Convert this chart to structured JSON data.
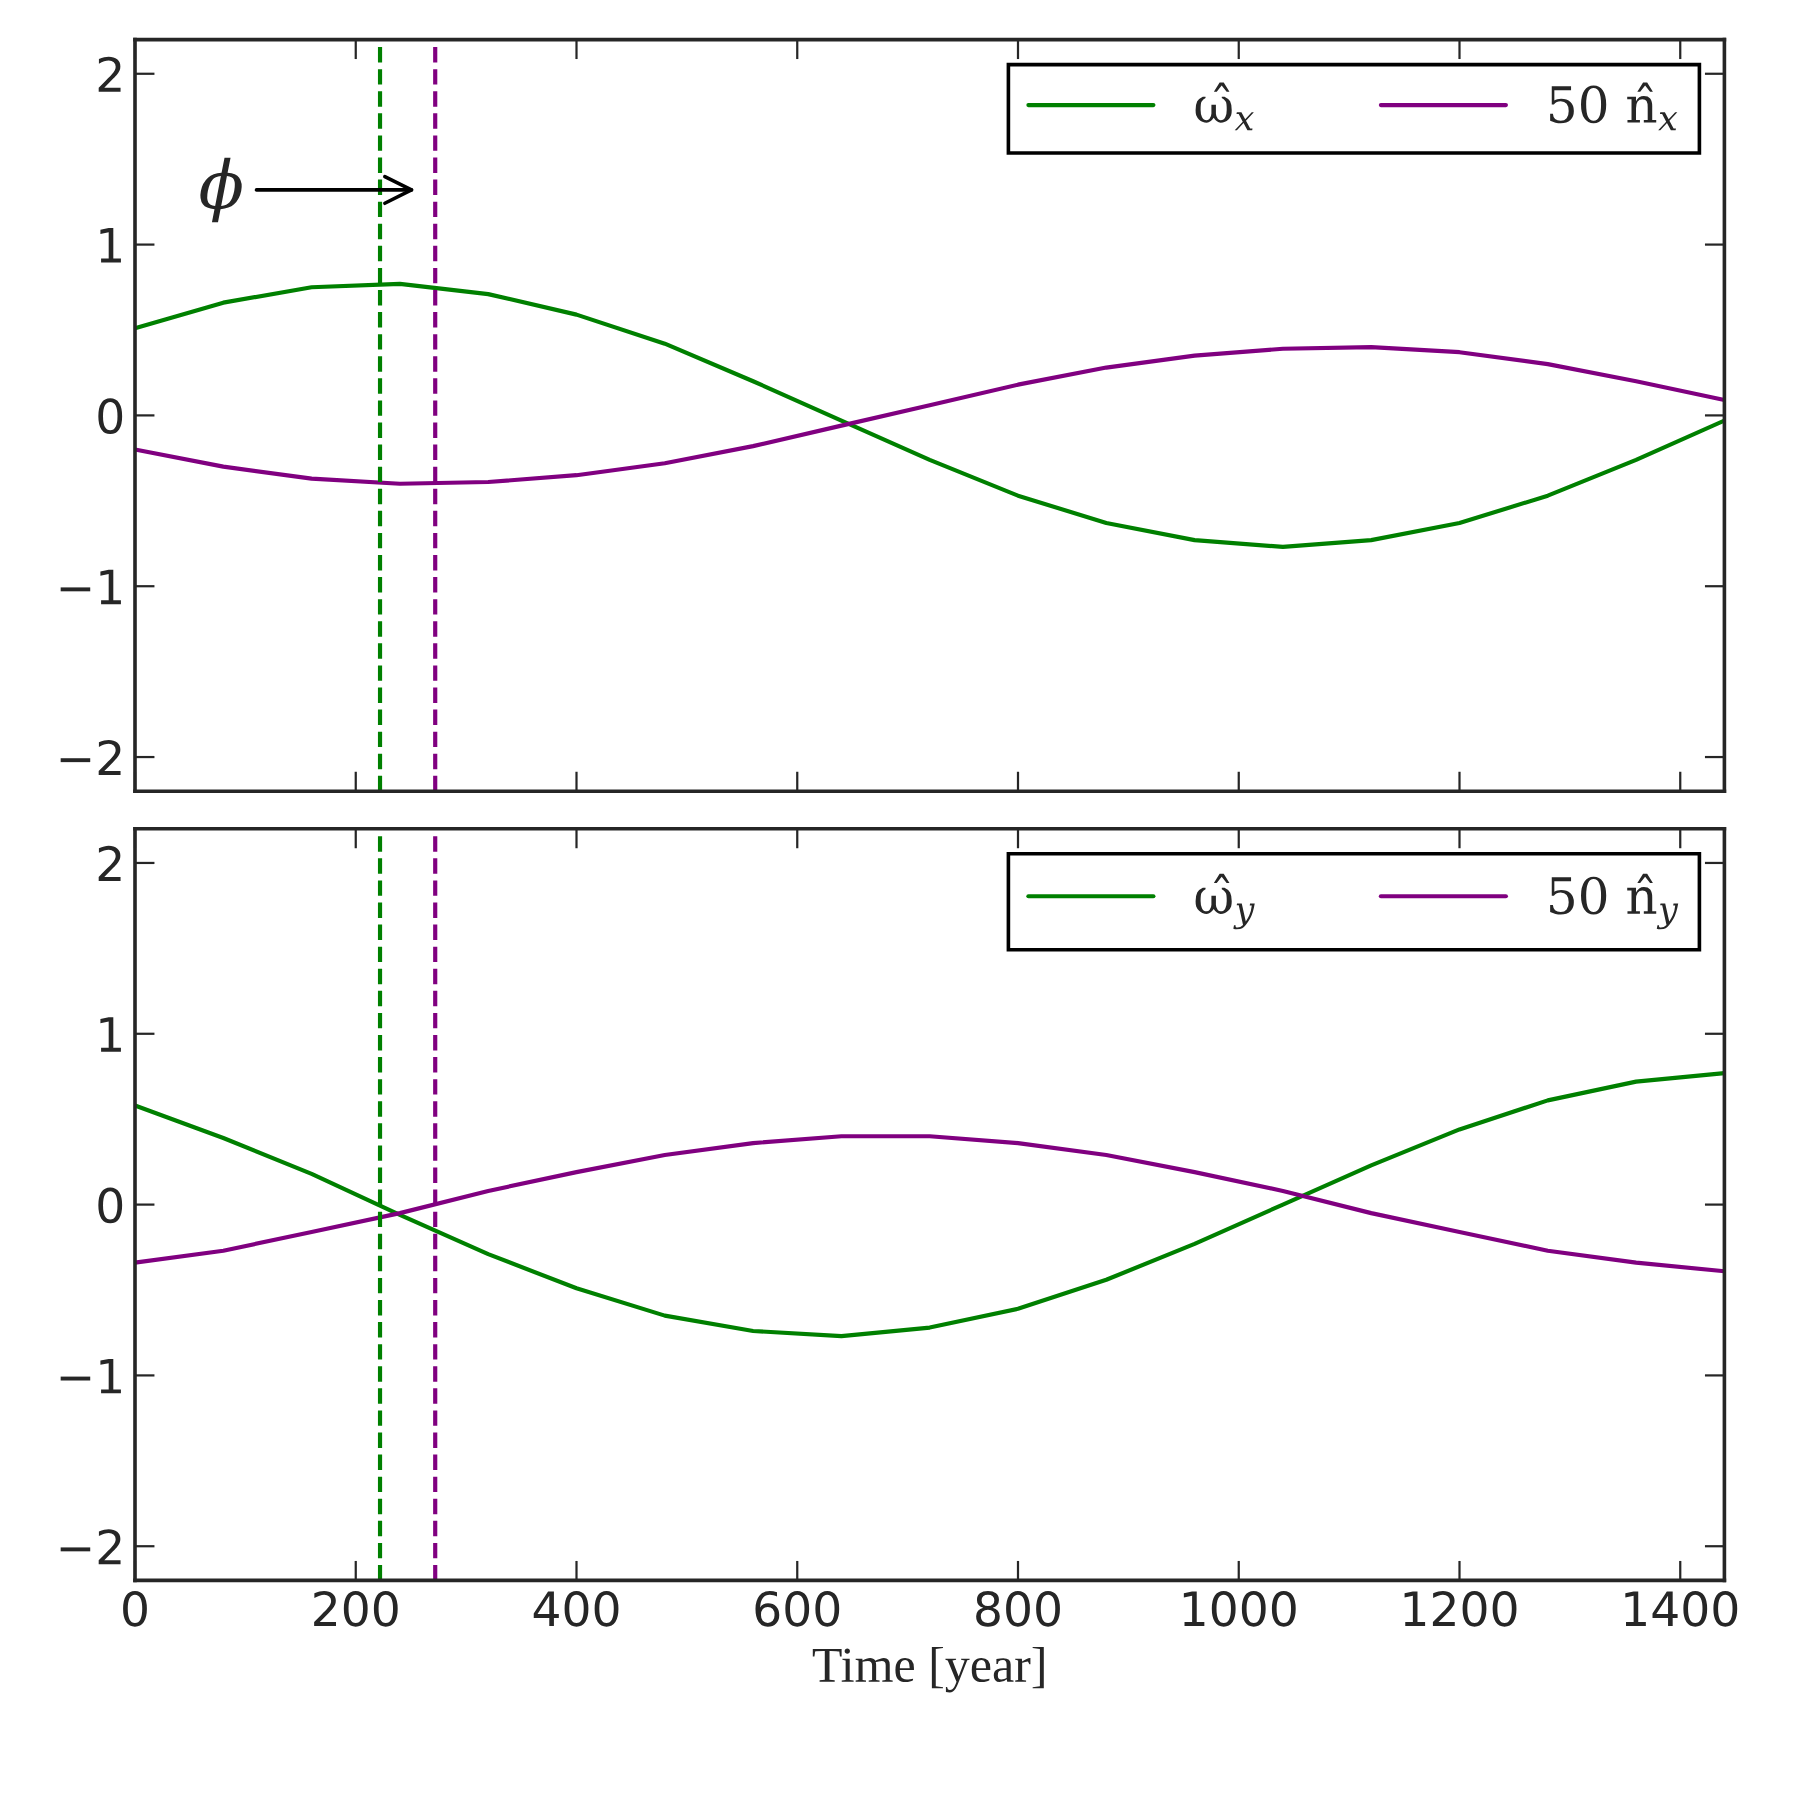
{
  "chart_data": [
    {
      "type": "line",
      "x": [
        0,
        80,
        160,
        240,
        320,
        400,
        480,
        560,
        640,
        720,
        800,
        880,
        960,
        1040,
        1120,
        1200,
        1280,
        1360,
        1440
      ],
      "series": [
        {
          "name": "ω̂$_{x}$",
          "color": "#008000",
          "values": [
            0.51,
            0.66,
            0.75,
            0.77,
            0.71,
            0.59,
            0.42,
            0.2,
            -0.03,
            -0.26,
            -0.47,
            -0.63,
            -0.73,
            -0.77,
            -0.73,
            -0.63,
            -0.47,
            -0.26,
            -0.03
          ]
        },
        {
          "name": "50 n̂$_{x}$",
          "color": "#800080",
          "values": [
            -0.2,
            -0.3,
            -0.37,
            -0.4,
            -0.39,
            -0.35,
            -0.28,
            -0.18,
            -0.06,
            0.06,
            0.18,
            0.28,
            0.35,
            0.39,
            0.4,
            0.37,
            0.3,
            0.2,
            0.09
          ]
        }
      ],
      "xlim": [
        0,
        1440
      ],
      "xticks": [
        0,
        200,
        400,
        600,
        800,
        1000,
        1200,
        1400
      ],
      "ylim": [
        -2.2,
        2.2
      ],
      "yticks": [
        -2,
        -1,
        0,
        1,
        2
      ],
      "ref_lines": [
        {
          "axis": "x",
          "value": 222,
          "color": "#008000",
          "line_style": "dashed"
        },
        {
          "axis": "x",
          "value": 272,
          "color": "#800080",
          "line_style": "dashed"
        }
      ],
      "annotations": [
        "ϕ"
      ],
      "legend": "top right",
      "tick_labels": "y",
      "grid": false,
      "marker": "none",
      "line_style": "solid"
    },
    {
      "type": "line",
      "x": [
        0,
        80,
        160,
        240,
        320,
        400,
        480,
        560,
        640,
        720,
        800,
        880,
        960,
        1040,
        1120,
        1200,
        1280,
        1360,
        1440
      ],
      "series": [
        {
          "name": "ω̂$_{y}$",
          "color": "#008000",
          "values": [
            0.58,
            0.39,
            0.18,
            -0.06,
            -0.29,
            -0.49,
            -0.65,
            -0.74,
            -0.77,
            -0.72,
            -0.61,
            -0.44,
            -0.23,
            0.0,
            0.23,
            0.44,
            0.61,
            0.72,
            0.77
          ]
        },
        {
          "name": "50 n̂$_{y}$",
          "color": "#800080",
          "values": [
            -0.34,
            -0.27,
            -0.16,
            -0.05,
            0.08,
            0.19,
            0.29,
            0.36,
            0.4,
            0.4,
            0.36,
            0.29,
            0.19,
            0.08,
            -0.05,
            -0.16,
            -0.27,
            -0.34,
            -0.39
          ]
        }
      ],
      "xlim": [
        0,
        1440
      ],
      "xticks": [
        0,
        200,
        400,
        600,
        800,
        1000,
        1200,
        1400
      ],
      "ylim": [
        -2.2,
        2.2
      ],
      "yticks": [
        -2,
        -1,
        0,
        1,
        2
      ],
      "xlabel": "Time [year]",
      "ref_lines": [
        {
          "axis": "x",
          "value": 222,
          "color": "#008000",
          "line_style": "dashed"
        },
        {
          "axis": "x",
          "value": 272,
          "color": "#800080",
          "line_style": "dashed"
        }
      ],
      "legend": "top right",
      "grid": false,
      "marker": "none",
      "line_style": "solid"
    }
  ]
}
